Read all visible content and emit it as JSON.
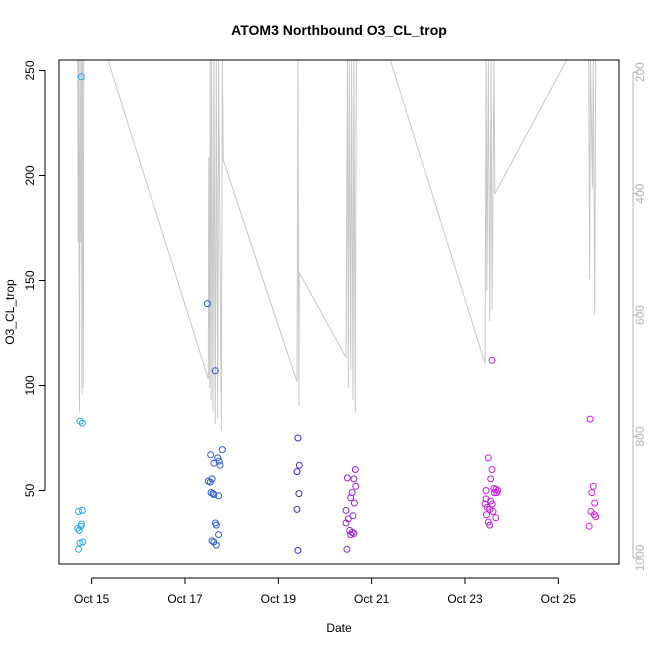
{
  "chart_data": {
    "type": "scatter",
    "title": "ATOM3 Northbound O3_CL_trop",
    "xlabel": "Date",
    "ylabel": "O3_CL_trop",
    "x_units": "days (October 2017 day-of-month)",
    "xlim": [
      14.3,
      26.3
    ],
    "ylim": [
      15,
      255
    ],
    "x_ticks": [
      {
        "value": 15,
        "label": "Oct 15"
      },
      {
        "value": 17,
        "label": "Oct 17"
      },
      {
        "value": 19,
        "label": "Oct 19"
      },
      {
        "value": 21,
        "label": "Oct 21"
      },
      {
        "value": 23,
        "label": "Oct 23"
      },
      {
        "value": 25,
        "label": "Oct 25"
      }
    ],
    "y_ticks": [
      50,
      100,
      150,
      200,
      250
    ],
    "y2_ticks": [
      200,
      400,
      600,
      800,
      1000
    ],
    "y2_range_top_bottom": [
      180,
      1010
    ],
    "y2_reversed": true,
    "grid": false,
    "legend": "none",
    "colors": {
      "path": "#c8c8c8",
      "axis": "#000000",
      "secondary_axis": "#b5b5b5",
      "color_ramp": [
        "#1ea8ee",
        "#2a5bdc",
        "#3a2ad8",
        "#7a22d6",
        "#c21ee0",
        "#d81ee8"
      ]
    },
    "series": [
      {
        "color": "#1ea8ee",
        "points": [
          [
            14.78,
            247
          ],
          [
            14.75,
            83
          ],
          [
            14.8,
            82
          ],
          [
            14.72,
            40
          ],
          [
            14.8,
            40.5
          ],
          [
            14.78,
            34
          ],
          [
            14.7,
            32
          ],
          [
            14.73,
            31
          ],
          [
            14.77,
            33
          ],
          [
            14.75,
            25
          ],
          [
            14.81,
            25.5
          ],
          [
            14.72,
            22
          ]
        ]
      },
      {
        "color": "#2a5bdc",
        "points": [
          [
            17.48,
            139
          ],
          [
            17.65,
            107
          ],
          [
            17.8,
            69.5
          ],
          [
            17.55,
            67
          ],
          [
            17.7,
            65.5
          ],
          [
            17.73,
            64
          ],
          [
            17.62,
            63
          ],
          [
            17.75,
            62
          ],
          [
            17.58,
            55.5
          ],
          [
            17.5,
            54.5
          ],
          [
            17.54,
            54
          ],
          [
            17.56,
            49
          ],
          [
            17.6,
            48.5
          ],
          [
            17.62,
            48
          ],
          [
            17.72,
            47.5
          ],
          [
            17.65,
            34.5
          ],
          [
            17.67,
            33.5
          ],
          [
            17.72,
            29
          ],
          [
            17.58,
            26
          ],
          [
            17.62,
            25.5
          ],
          [
            17.67,
            24
          ]
        ]
      },
      {
        "color": "#3a2ad8",
        "points": [
          [
            19.42,
            75
          ],
          [
            19.45,
            62
          ],
          [
            19.4,
            59
          ],
          [
            19.44,
            48.5
          ],
          [
            19.4,
            41
          ],
          [
            19.42,
            21.5
          ]
        ]
      },
      {
        "color": "#9a1fe0",
        "points": [
          [
            20.65,
            60
          ],
          [
            20.48,
            56
          ],
          [
            20.62,
            55.5
          ],
          [
            20.66,
            52
          ],
          [
            20.58,
            49
          ],
          [
            20.55,
            46.5
          ],
          [
            20.45,
            40.5
          ],
          [
            20.63,
            44
          ],
          [
            20.6,
            38
          ],
          [
            20.5,
            36.5
          ],
          [
            20.45,
            34.5
          ],
          [
            20.53,
            31
          ],
          [
            20.58,
            30
          ],
          [
            20.62,
            29.5
          ],
          [
            20.55,
            29
          ],
          [
            20.47,
            22
          ]
        ]
      },
      {
        "color": "#c21ee0",
        "points": [
          [
            23.58,
            112
          ],
          [
            23.5,
            65.5
          ],
          [
            23.58,
            60
          ],
          [
            23.55,
            55.5
          ],
          [
            23.62,
            51
          ],
          [
            23.66,
            50.5
          ],
          [
            23.7,
            50
          ],
          [
            23.63,
            49
          ],
          [
            23.68,
            49
          ],
          [
            23.45,
            50
          ],
          [
            23.45,
            46
          ],
          [
            23.55,
            45
          ],
          [
            23.43,
            43.5
          ],
          [
            23.58,
            43.5
          ],
          [
            23.48,
            42
          ],
          [
            23.53,
            41
          ],
          [
            23.6,
            40
          ],
          [
            23.46,
            38.5
          ],
          [
            23.66,
            37
          ],
          [
            23.5,
            35
          ],
          [
            23.53,
            33.5
          ]
        ]
      },
      {
        "color": "#d81ee8",
        "points": [
          [
            25.68,
            84
          ],
          [
            25.75,
            52
          ],
          [
            25.72,
            49
          ],
          [
            25.78,
            44
          ],
          [
            25.7,
            40
          ],
          [
            25.77,
            38.5
          ],
          [
            25.8,
            37.5
          ],
          [
            25.66,
            33
          ]
        ]
      }
    ],
    "path_y2": [
      [
        14.7,
        180
      ],
      [
        14.71,
        480
      ],
      [
        14.72,
        180
      ],
      [
        14.74,
        760
      ],
      [
        14.75,
        180
      ],
      [
        14.77,
        480
      ],
      [
        14.78,
        180
      ],
      [
        14.79,
        730
      ],
      [
        14.8,
        180
      ],
      [
        14.82,
        720
      ],
      [
        14.83,
        180
      ],
      [
        15.35,
        180
      ],
      [
        17.5,
        705
      ],
      [
        17.51,
        340
      ],
      [
        17.53,
        720
      ],
      [
        17.54,
        180
      ],
      [
        17.56,
        740
      ],
      [
        17.57,
        180
      ],
      [
        17.6,
        760
      ],
      [
        17.62,
        180
      ],
      [
        17.65,
        780
      ],
      [
        17.67,
        180
      ],
      [
        17.7,
        770
      ],
      [
        17.72,
        180
      ],
      [
        17.78,
        790
      ],
      [
        17.8,
        180
      ],
      [
        17.82,
        345
      ],
      [
        19.4,
        710
      ],
      [
        19.42,
        180
      ],
      [
        19.44,
        750
      ],
      [
        19.45,
        530
      ],
      [
        20.45,
        670
      ],
      [
        20.48,
        180
      ],
      [
        20.5,
        720
      ],
      [
        20.52,
        180
      ],
      [
        20.55,
        690
      ],
      [
        20.57,
        180
      ],
      [
        20.6,
        740
      ],
      [
        20.62,
        180
      ],
      [
        20.65,
        760
      ],
      [
        20.67,
        180
      ],
      [
        20.7,
        180
      ],
      [
        21.4,
        180
      ],
      [
        23.43,
        680
      ],
      [
        23.45,
        180
      ],
      [
        23.47,
        560
      ],
      [
        23.5,
        180
      ],
      [
        23.53,
        610
      ],
      [
        23.56,
        180
      ],
      [
        23.58,
        590
      ],
      [
        23.6,
        410
      ],
      [
        23.62,
        180
      ],
      [
        23.64,
        400
      ],
      [
        25.18,
        180
      ],
      [
        25.6,
        180
      ],
      [
        25.65,
        180
      ],
      [
        25.67,
        540
      ],
      [
        25.69,
        180
      ],
      [
        25.73,
        390
      ],
      [
        25.75,
        180
      ],
      [
        25.78,
        600
      ],
      [
        25.8,
        180
      ],
      [
        25.85,
        180
      ]
    ]
  }
}
